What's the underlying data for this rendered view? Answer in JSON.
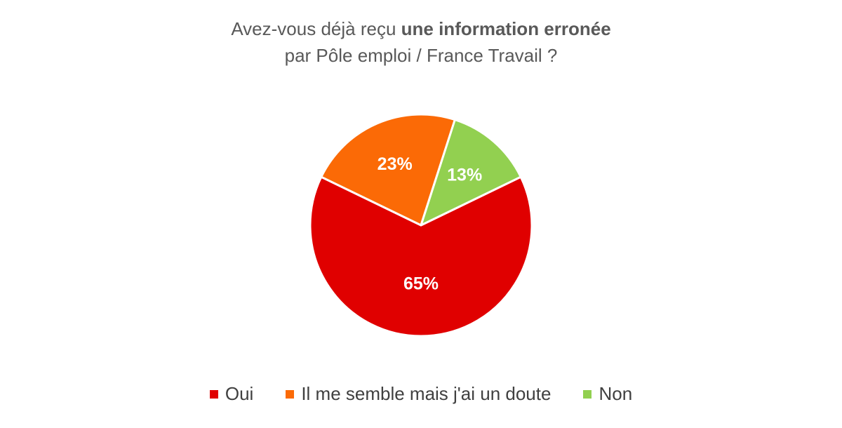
{
  "title": {
    "line1_regular": "Avez-vous déjà reçu ",
    "line1_bold": "une information erronée",
    "line2": "par Pôle emploi / France Travail ?"
  },
  "chart_data": {
    "type": "pie",
    "title": "Avez-vous déjà reçu une information erronée par Pôle emploi / France Travail ?",
    "legend_position": "bottom",
    "slices": [
      {
        "label": "Oui",
        "value": 65,
        "data_label": "65%",
        "color": "#e00000"
      },
      {
        "label": "Il me semble mais j'ai un doute",
        "value": 23,
        "data_label": "23%",
        "color": "#fb6a06"
      },
      {
        "label": "Non",
        "value": 13,
        "data_label": "13%",
        "color": "#92d050"
      }
    ]
  }
}
